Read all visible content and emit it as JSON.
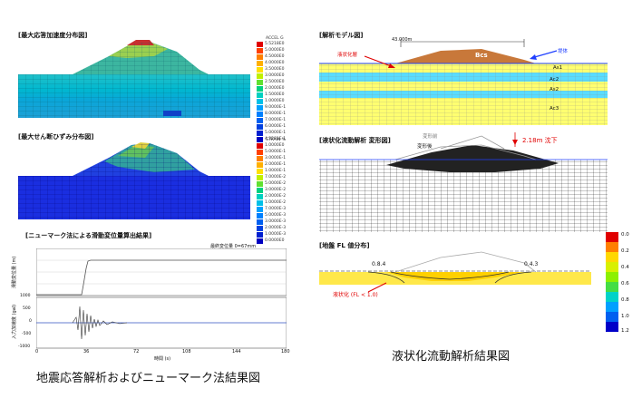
{
  "left": {
    "panel1_title": "[最大応答加速度分布図]",
    "panel1_legend_header": "ACCEL  G",
    "panel1_legend": [
      "5.5218E0",
      "5.0000E0",
      "4.5000E0",
      "4.0000E0",
      "3.5000E0",
      "3.0000E0",
      "2.5000E0",
      "2.0000E0",
      "1.5000E0",
      "1.0000E0",
      "9.0000E-1",
      "8.0000E-1",
      "7.0000E-1",
      "6.0000E-1",
      "5.0000E-1",
      "4.3281E-1"
    ],
    "panel2_title": "[最大せん断ひずみ分布図]",
    "panel2_legend_header": "STRAIN  %",
    "panel2_legend": [
      "1.0000E0",
      "5.0000E-1",
      "3.0000E-1",
      "2.0000E-1",
      "1.0000E-1",
      "7.0000E-2",
      "5.0000E-2",
      "3.0000E-2",
      "2.0000E-2",
      "1.0000E-2",
      "7.0000E-3",
      "5.0000E-3",
      "3.0000E-3",
      "2.0000E-3",
      "1.0000E-3",
      "0.0000E0"
    ],
    "panel3_title": "[ニューマーク法による滑動変位量算出結果]",
    "panel3_final_label": "最終変位量  0=67mm",
    "panel3_ylabel_top": "滑動変位量 (m)",
    "panel3_ylabel_bottom": "入力加速度 (gal)",
    "panel3_xticks": [
      "0",
      "36",
      "72",
      "108",
      "144",
      "180"
    ],
    "panel3_xlabel": "時間 (s)",
    "panel3_yticks_bottom": [
      "1000",
      "500",
      "0",
      "-500",
      "-1000"
    ],
    "caption": "地震応答解析およびニューマーク法結果図"
  },
  "right": {
    "panel1_title": "[解析モデル図]",
    "dim_label": "43.000m",
    "liquefied_label": "液状化層",
    "dike_label": "堤体",
    "bcs_label": "Bcs",
    "layers": [
      "As1",
      "Ac2",
      "As2",
      "Ac3"
    ],
    "panel2_title": "[液状化流動解析  変形図]",
    "before_label": "変形前",
    "after_label": "変形後",
    "settlement_label": "2.18m 沈下",
    "panel3_title": "[地盤 FL 値分布]",
    "fl_left": "0.8.4",
    "fl_right": "0.4.3",
    "liq_note": "液状化 (FL < 1.0)",
    "fl_scale": [
      "0.0",
      "0.2",
      "0.4",
      "0.6",
      "0.8",
      "1.0",
      "1.2"
    ],
    "caption": "液状化流動解析結果図"
  },
  "colors": {
    "scale": [
      "#e00000",
      "#ff7f00",
      "#ffd800",
      "#c8e800",
      "#44dd44",
      "#00d2c8",
      "#0080ff",
      "#0000c8"
    ]
  }
}
